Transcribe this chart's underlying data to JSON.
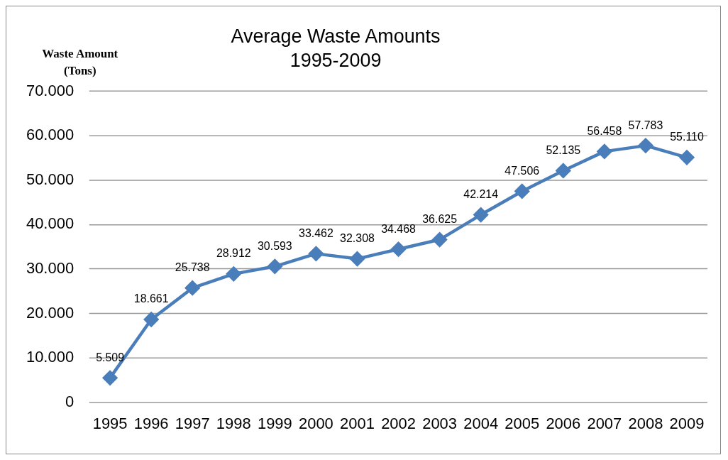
{
  "chart_data": {
    "type": "line",
    "title": "Average Waste Amounts\n1995-2009",
    "ylabel": "Waste Amount\n(Tons)",
    "categories": [
      "1995",
      "1996",
      "1997",
      "1998",
      "1999",
      "2000",
      "2001",
      "2002",
      "2003",
      "2004",
      "2005",
      "2006",
      "2007",
      "2008",
      "2009"
    ],
    "series": [
      {
        "color": "#4a7ebb",
        "values": [
          5509,
          18661,
          25738,
          28912,
          30593,
          33462,
          32308,
          34468,
          36625,
          42214,
          47506,
          52135,
          56458,
          57783,
          55110
        ],
        "value_labels": [
          "5.509",
          "18.661",
          "25.738",
          "28.912",
          "30.593",
          "33.462",
          "32.308",
          "34.468",
          "36.625",
          "42.214",
          "47.506",
          "52.135",
          "56.458",
          "57.783",
          "55.110"
        ]
      }
    ],
    "ylim": [
      0,
      70000
    ],
    "yticks": [
      0,
      {
        "value": 10000,
        "label": "10.000"
      },
      {
        "value": 20000,
        "label": "20.000"
      },
      {
        "value": 30000,
        "label": "30.000"
      },
      {
        "value": 40000,
        "label": "40.000"
      },
      {
        "value": 50000,
        "label": "50.000"
      },
      {
        "value": 60000,
        "label": "60.000"
      },
      {
        "value": 70000,
        "label": "70.000"
      }
    ],
    "grid": "y",
    "legend": false,
    "marker": "diamond",
    "line_style": "solid"
  }
}
